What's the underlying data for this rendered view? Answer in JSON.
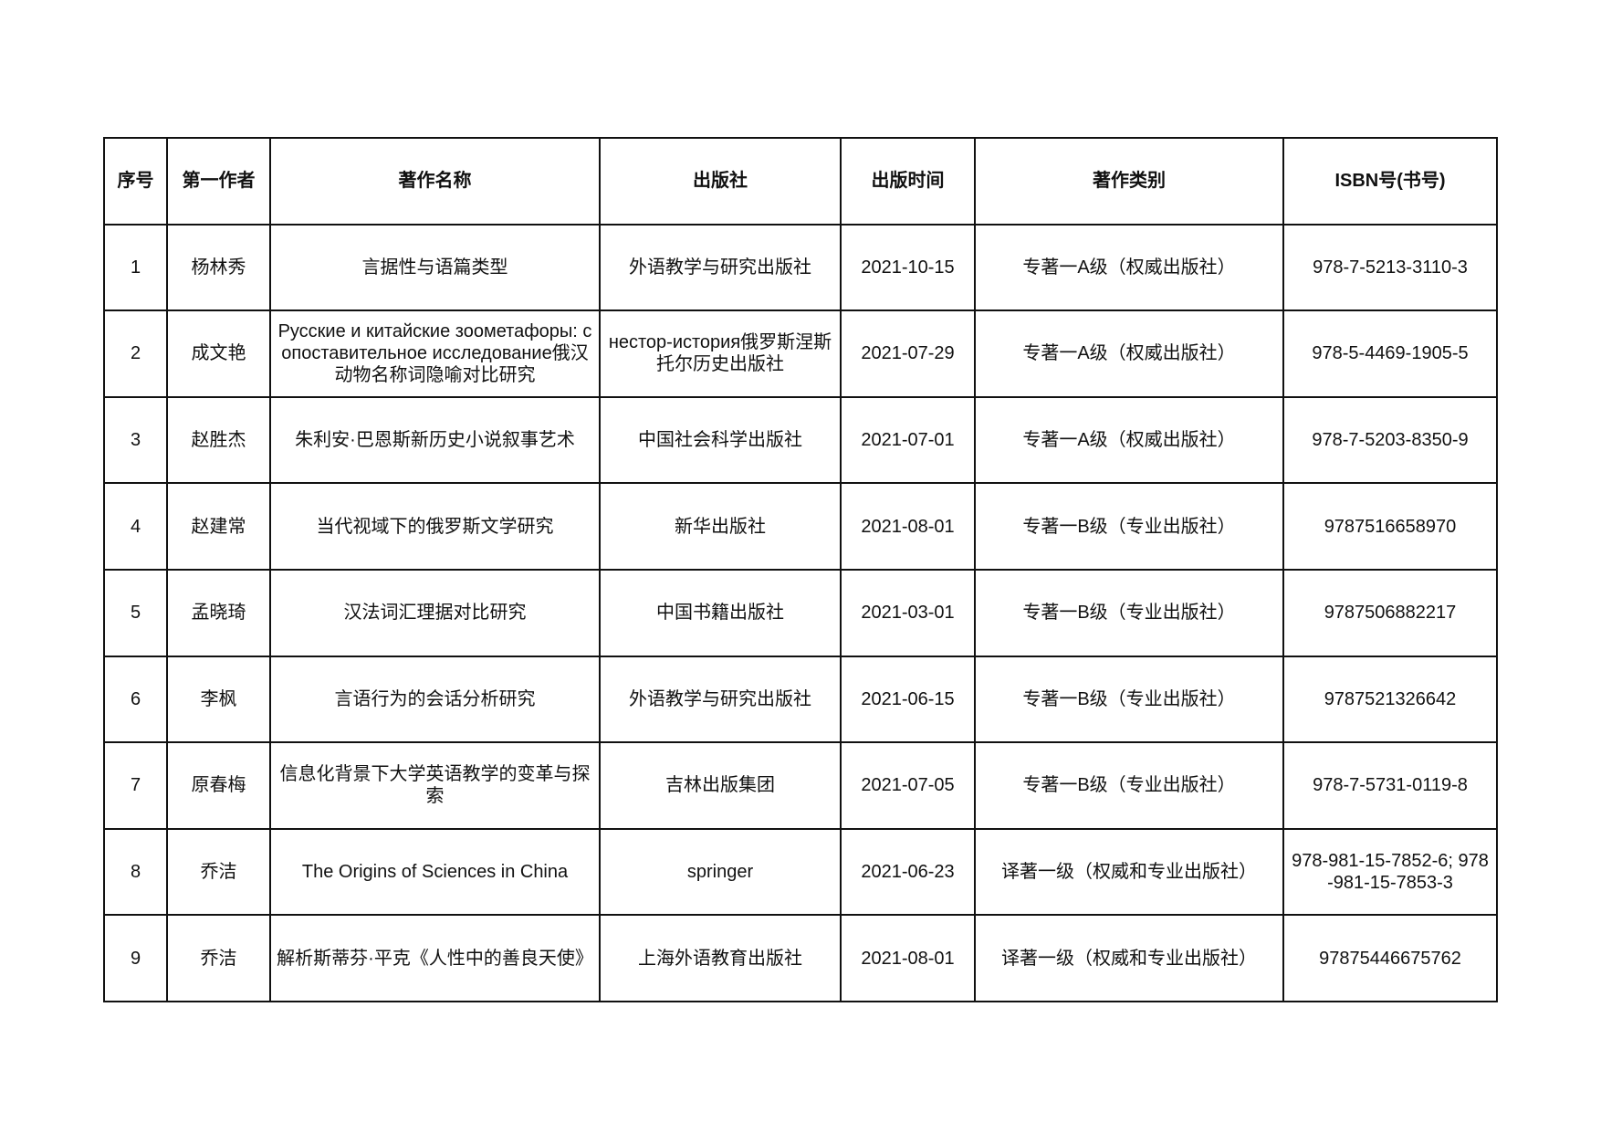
{
  "table": {
    "headers": [
      "序号",
      "第一作者",
      "著作名称",
      "出版社",
      "出版时间",
      "著作类别",
      "ISBN号(书号)"
    ],
    "rows": [
      [
        "1",
        "杨林秀",
        "言据性与语篇类型",
        "外语教学与研究出版社",
        "2021-10-15",
        "专著一A级（权威出版社）",
        "978-7-5213-3110-3"
      ],
      [
        "2",
        "成文艳",
        "Русские и китайские зоометафоры: сопоставительное исследование俄汉动物名称词隐喻对比研究",
        "нестор-история俄罗斯涅斯托尔历史出版社",
        "2021-07-29",
        "专著一A级（权威出版社）",
        "978-5-4469-1905-5"
      ],
      [
        "3",
        "赵胜杰",
        "朱利安·巴恩斯新历史小说叙事艺术",
        "中国社会科学出版社",
        "2021-07-01",
        "专著一A级（权威出版社）",
        "978-7-5203-8350-9"
      ],
      [
        "4",
        "赵建常",
        "当代视域下的俄罗斯文学研究",
        "新华出版社",
        "2021-08-01",
        "专著一B级（专业出版社）",
        "9787516658970"
      ],
      [
        "5",
        "孟晓琦",
        "汉法词汇理据对比研究",
        "中国书籍出版社",
        "2021-03-01",
        "专著一B级（专业出版社）",
        "9787506882217"
      ],
      [
        "6",
        "李枫",
        "言语行为的会话分析研究",
        "外语教学与研究出版社",
        "2021-06-15",
        "专著一B级（专业出版社）",
        "9787521326642"
      ],
      [
        "7",
        "原春梅",
        "信息化背景下大学英语教学的变革与探索",
        "吉林出版集团",
        "2021-07-05",
        "专著一B级（专业出版社）",
        "978-7-5731-0119-8"
      ],
      [
        "8",
        "乔洁",
        "The Origins of Sciences in China",
        "springer",
        "2021-06-23",
        "译著一级（权威和专业出版社）",
        "978-981-15-7852-6; 978-981-15-7853-3"
      ],
      [
        "9",
        "乔洁",
        "解析斯蒂芬·平克《人性中的善良天使》",
        "上海外语教育出版社",
        "2021-08-01",
        "译著一级（权威和专业出版社）",
        "97875446675762"
      ]
    ]
  }
}
